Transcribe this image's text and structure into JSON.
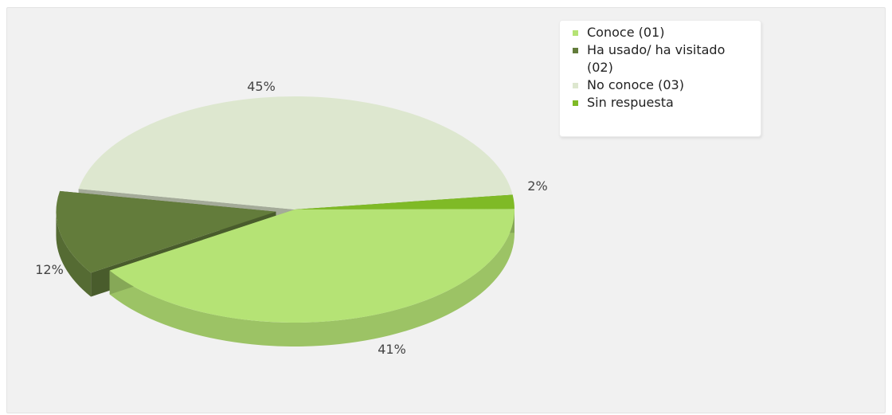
{
  "chart_data": {
    "type": "pie",
    "title": "",
    "slices": [
      {
        "label": "Conoce (01)",
        "value": 41,
        "display": "41%",
        "color": "#b5e375"
      },
      {
        "label": "Ha usado/ ha visitado (02)",
        "value": 12,
        "display": "12%",
        "color": "#637c3b"
      },
      {
        "label": "No conoce (03)",
        "value": 45,
        "display": "45%",
        "color": "#dde7cf"
      },
      {
        "label": "Sin respuesta",
        "value": 2,
        "display": "2%",
        "color": "#7fba26"
      }
    ],
    "exploded": [
      "Ha usado/ ha visitado (02)"
    ],
    "style": "3d",
    "legend_position": "top-right"
  }
}
